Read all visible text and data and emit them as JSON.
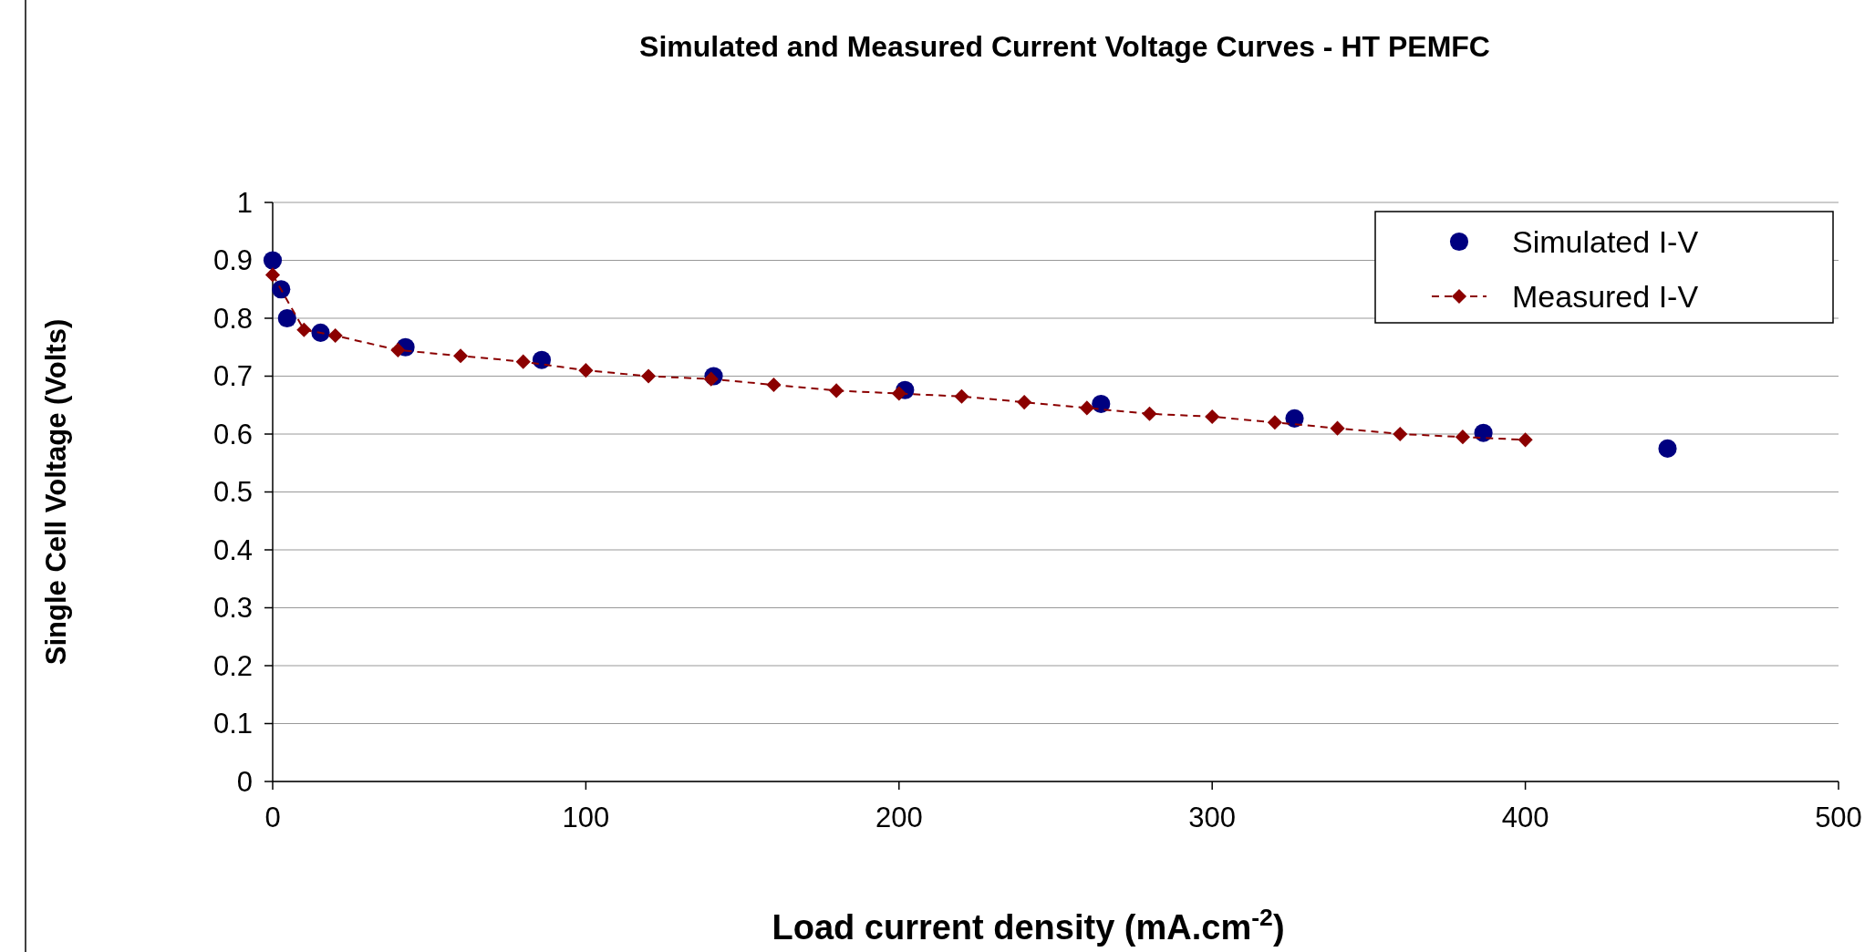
{
  "chart_data": {
    "type": "scatter",
    "title": "Simulated and Measured Current Voltage Curves - HT PEMFC",
    "xlabel": "Load current density (mA.cm$^{-2}$)",
    "ylabel": "Single Cell Voltage (Volts)",
    "xlim": [
      0,
      500
    ],
    "xticks": [
      0,
      100,
      200,
      300,
      400,
      500
    ],
    "ylim": [
      0,
      1
    ],
    "yticks": [
      0,
      0.1,
      0.2,
      0.3,
      0.4,
      0.5,
      0.6,
      0.7,
      0.8,
      0.9,
      1
    ],
    "grid": "y",
    "legend": "top right",
    "series": [
      {
        "name": "Simulated I-V",
        "marker": "circle",
        "color": "#000080",
        "x": [
          0,
          2.7,
          4.6,
          15.3,
          42.4,
          85.9,
          140.8,
          201.9,
          264.5,
          326.3,
          386.6,
          445.4
        ],
        "values": [
          0.9,
          0.85,
          0.8,
          0.775,
          0.75,
          0.728,
          0.7,
          0.676,
          0.652,
          0.627,
          0.602,
          0.575
        ]
      },
      {
        "name": "Measured I-V",
        "type": "line",
        "marker": "diamond",
        "line_style": "dashed",
        "color": "#8b0000",
        "x": [
          0,
          10,
          20,
          40,
          60,
          80,
          100,
          120,
          140,
          160,
          180,
          200,
          220,
          240,
          260,
          280,
          300,
          320,
          340,
          360,
          380,
          400
        ],
        "values": [
          0.875,
          0.78,
          0.77,
          0.745,
          0.735,
          0.725,
          0.71,
          0.7,
          0.695,
          0.685,
          0.675,
          0.67,
          0.665,
          0.655,
          0.645,
          0.635,
          0.63,
          0.62,
          0.61,
          0.6,
          0.595,
          0.59
        ]
      }
    ]
  }
}
